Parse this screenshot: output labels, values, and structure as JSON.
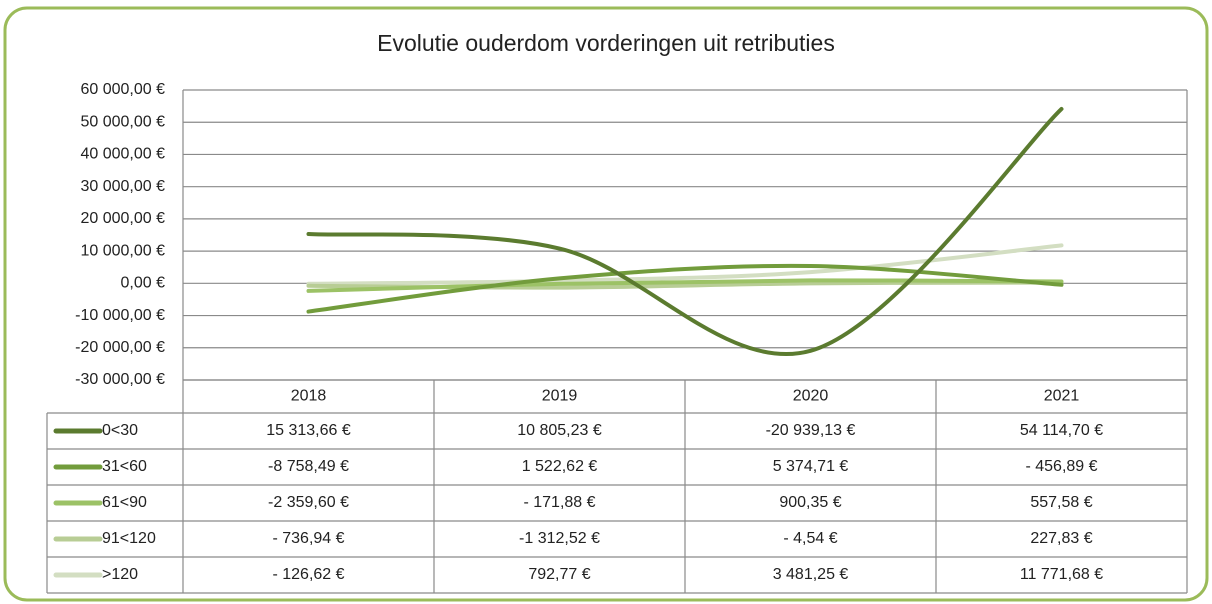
{
  "chart_data": {
    "type": "line",
    "title": "Evolutie ouderdom vorderingen uit retributies",
    "categories": [
      "2018",
      "2019",
      "2020",
      "2021"
    ],
    "series": [
      {
        "name": "0<30",
        "color": "#5b7b2f",
        "values": [
          15313.66,
          10805.23,
          -20939.13,
          54114.7
        ],
        "value_labels": [
          "15 313,66 €",
          "10 805,23 €",
          "-20 939,13 €",
          "54 114,70 €"
        ]
      },
      {
        "name": "31<60",
        "color": "#729c3c",
        "values": [
          -8758.49,
          1522.62,
          5374.71,
          -456.89
        ],
        "value_labels": [
          "-8 758,49 €",
          "1 522,62 €",
          "5 374,71 €",
          "- 456,89 €"
        ]
      },
      {
        "name": "61<90",
        "color": "#9cc266",
        "values": [
          -2359.6,
          -171.88,
          900.35,
          557.58
        ],
        "value_labels": [
          "-2 359,60 €",
          "- 171,88 €",
          "900,35 €",
          "557,58 €"
        ]
      },
      {
        "name": "91<120",
        "color": "#b8cd95",
        "values": [
          -736.94,
          -1312.52,
          -4.54,
          227.83
        ],
        "value_labels": [
          "- 736,94 €",
          "-1 312,52 €",
          "- 4,54 €",
          "227,83 €"
        ]
      },
      {
        "name": ">120",
        "color": "#d3dec2",
        "values": [
          -126.62,
          792.77,
          3481.25,
          11771.68
        ],
        "value_labels": [
          "- 126,62 €",
          "792,77 €",
          "3 481,25 €",
          "11 771,68 €"
        ]
      }
    ],
    "ylim": [
      -30000,
      60000
    ],
    "yticks": [
      {
        "value": -30000,
        "label": "-30 000,00 €"
      },
      {
        "value": -20000,
        "label": "-20 000,00 €"
      },
      {
        "value": -10000,
        "label": "-10 000,00 €"
      },
      {
        "value": 0,
        "label": "0,00 €"
      },
      {
        "value": 10000,
        "label": "10 000,00 €"
      },
      {
        "value": 20000,
        "label": "20 000,00 €"
      },
      {
        "value": 30000,
        "label": "30 000,00 €"
      },
      {
        "value": 40000,
        "label": "40 000,00 €"
      },
      {
        "value": 50000,
        "label": "50 000,00 €"
      },
      {
        "value": 60000,
        "label": "60 000,00 €"
      }
    ],
    "grid": true,
    "smooth": true
  }
}
